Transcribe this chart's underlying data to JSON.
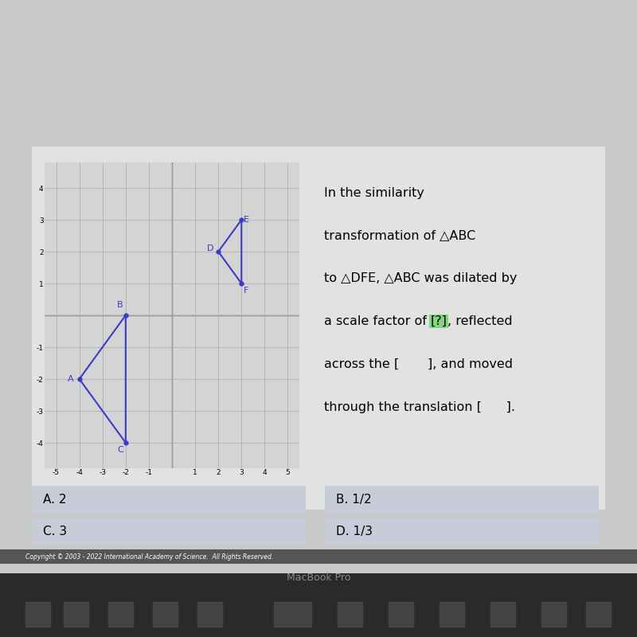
{
  "outer_bg": "#c8c8c8",
  "screen_bg": "#d8d8d8",
  "panel_bg": "#e2e2e2",
  "graph_bg": "#d4d4d4",
  "answer_box_color": "#c8ccd8",
  "bottom_bar_color": "#1a1a1a",
  "keyboard_color": "#2a2a2a",
  "triangle_ABC": {
    "A": [
      -4,
      -2
    ],
    "B": [
      -2,
      0
    ],
    "C": [
      -2,
      -4
    ],
    "color": "#3a3acc",
    "linewidth": 1.5
  },
  "triangle_DFE": {
    "D": [
      2,
      2
    ],
    "F": [
      3,
      1
    ],
    "E": [
      3,
      3
    ],
    "color": "#3a3acc",
    "linewidth": 1.5
  },
  "axis_xlim": [
    -5.5,
    5.5
  ],
  "axis_ylim": [
    -4.8,
    4.8
  ],
  "axis_xticks": [
    -5,
    -4,
    -3,
    -2,
    -1,
    1,
    2,
    3,
    4,
    5
  ],
  "axis_yticks": [
    -4,
    -3,
    -2,
    -1,
    1,
    2,
    3,
    4
  ],
  "grid_color": "#b0b0b0",
  "highlight_color": "#7dd87d",
  "answer_options": [
    {
      "label": "A. 2",
      "col": 0
    },
    {
      "label": "B. 1/2",
      "col": 1
    },
    {
      "label": "C. 3",
      "col": 0
    },
    {
      "label": "D. 1/3",
      "col": 1
    }
  ],
  "copyright_text": "Copyright © 2003 - 2022 International Academy of Science.  All Rights Reserved.",
  "macbook_text": "MacBook Pro",
  "label_fontsize": 8,
  "question_fontsize": 11.5,
  "answer_fontsize": 11,
  "tick_fontsize": 6.5
}
